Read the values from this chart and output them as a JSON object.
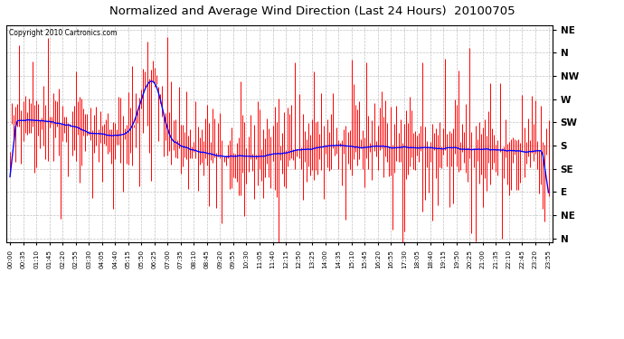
{
  "title": "Normalized and Average Wind Direction (Last 24 Hours)  20100705",
  "copyright": "Copyright 2010 Cartronics.com",
  "background_color": "#ffffff",
  "plot_bg_color": "#ffffff",
  "grid_color": "#c0c0c0",
  "red_color": "#ff0000",
  "blue_color": "#0000ff",
  "ytick_labels": [
    "NE",
    "N",
    "NW",
    "W",
    "SW",
    "S",
    "SE",
    "E",
    "NE",
    "N"
  ],
  "ytick_values": [
    1.0,
    0.889,
    0.778,
    0.667,
    0.556,
    0.444,
    0.333,
    0.222,
    0.111,
    0.0
  ],
  "ylim": [
    -0.02,
    1.02
  ],
  "n_points": 288,
  "seed": 42,
  "xtick_step_min": 35,
  "data_step_min": 5,
  "figsize": [
    6.9,
    3.75
  ],
  "dpi": 100
}
